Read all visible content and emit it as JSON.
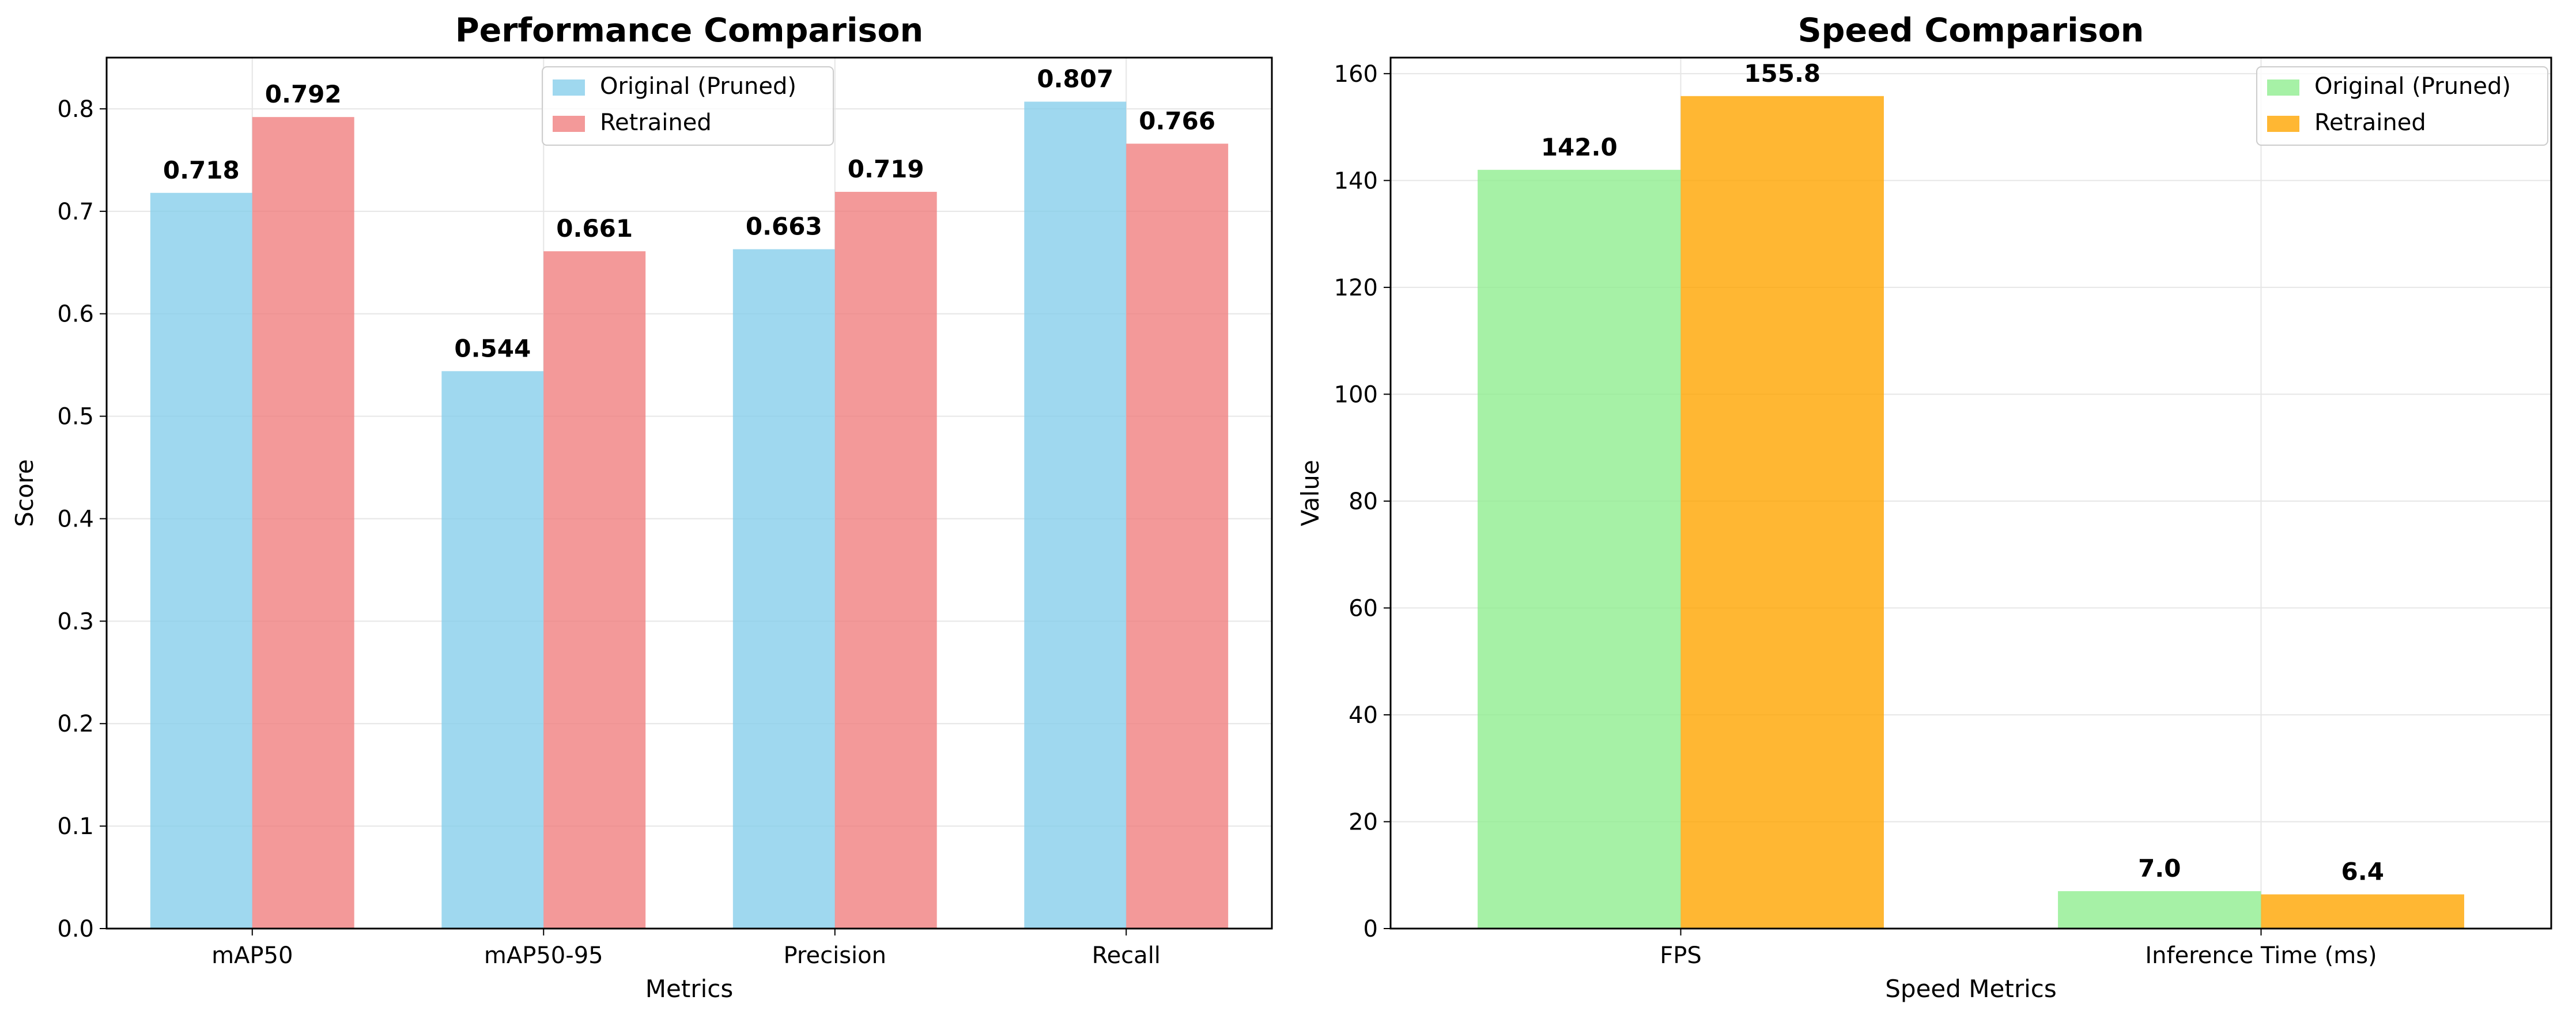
{
  "chart_data": [
    {
      "type": "bar",
      "title": "Performance Comparison",
      "xlabel": "Metrics",
      "ylabel": "Score",
      "categories": [
        "mAP50",
        "mAP50-95",
        "Precision",
        "Recall"
      ],
      "series": [
        {
          "name": "Original (Pruned)",
          "values": [
            0.718,
            0.544,
            0.663,
            0.807
          ],
          "color": "#87CEEB"
        },
        {
          "name": "Retrained",
          "values": [
            0.792,
            0.661,
            0.719,
            0.766
          ],
          "color": "#F08080"
        }
      ],
      "data_labels": [
        [
          "0.718",
          "0.544",
          "0.663",
          "0.807"
        ],
        [
          "0.792",
          "0.661",
          "0.719",
          "0.766"
        ]
      ],
      "ylim": [
        0,
        0.85
      ],
      "yticks": [
        "0.0",
        "0.1",
        "0.2",
        "0.3",
        "0.4",
        "0.5",
        "0.6",
        "0.7",
        "0.8"
      ],
      "grid": true,
      "legend_position": "top-center"
    },
    {
      "type": "bar",
      "title": "Speed Comparison",
      "xlabel": "Speed Metrics",
      "ylabel": "Value",
      "categories": [
        "FPS",
        "Inference Time (ms)"
      ],
      "series": [
        {
          "name": "Original (Pruned)",
          "values": [
            142.0,
            7.0
          ],
          "color": "#90EE90"
        },
        {
          "name": "Retrained",
          "values": [
            155.8,
            6.4
          ],
          "color": "#FFA500"
        }
      ],
      "data_labels": [
        [
          "142.0",
          "7.0"
        ],
        [
          "155.8",
          "6.4"
        ]
      ],
      "ylim": [
        0,
        163
      ],
      "yticks": [
        "0",
        "20",
        "40",
        "60",
        "80",
        "100",
        "120",
        "140",
        "160"
      ],
      "grid": true,
      "legend_position": "top-right"
    }
  ]
}
